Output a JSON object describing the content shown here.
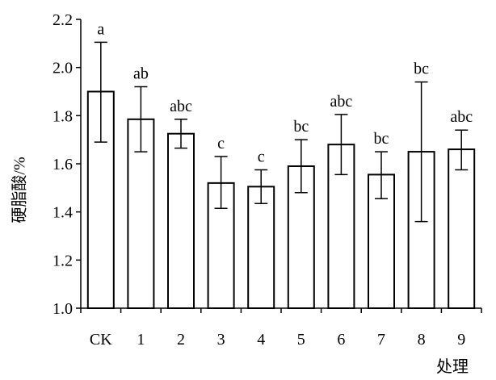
{
  "chart_data": {
    "type": "bar",
    "categories": [
      "CK",
      "1",
      "2",
      "3",
      "4",
      "5",
      "6",
      "7",
      "8",
      "9"
    ],
    "values": [
      1.9,
      1.785,
      1.725,
      1.52,
      1.505,
      1.59,
      1.68,
      1.555,
      1.65,
      1.66
    ],
    "error_low": [
      1.69,
      1.65,
      1.665,
      1.415,
      1.435,
      1.48,
      1.555,
      1.455,
      1.36,
      1.575
    ],
    "error_high": [
      2.105,
      1.92,
      1.785,
      1.63,
      1.575,
      1.7,
      1.805,
      1.65,
      1.94,
      1.74
    ],
    "significance_letters": [
      "a",
      "ab",
      "abc",
      "c",
      "c",
      "bc",
      "abc",
      "bc",
      "bc",
      "abc"
    ],
    "xlabel": "处理",
    "ylabel": "硬脂酸/%",
    "ylim": [
      1.0,
      2.2
    ],
    "yticks": [
      "1.0",
      "1.2",
      "1.4",
      "1.6",
      "1.8",
      "2.0",
      "2.2"
    ],
    "grid": false,
    "bar_fill": "#ffffff",
    "bar_stroke": "#000000"
  }
}
